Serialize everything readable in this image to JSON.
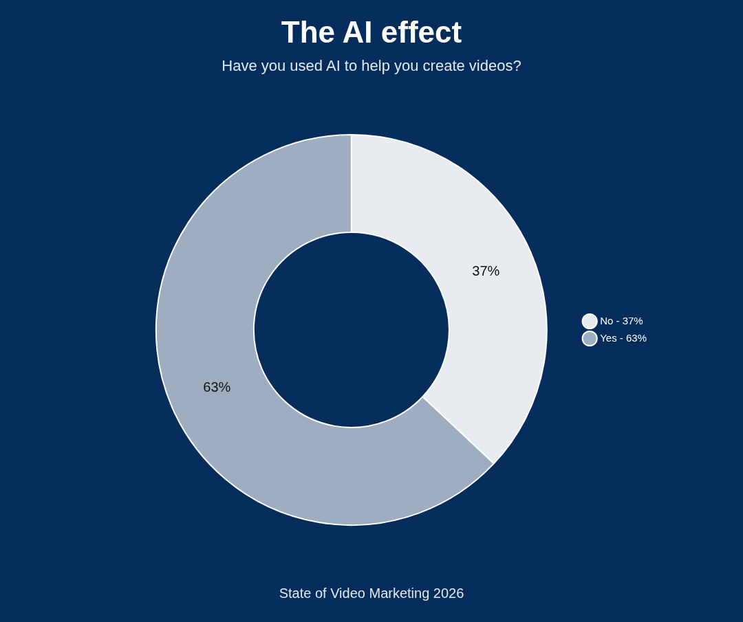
{
  "chart_data": {
    "type": "donut",
    "title": "The AI effect",
    "subtitle": "Have you used AI to help you create videos?",
    "categories": [
      "No - 37%",
      "Yes - 63%"
    ],
    "values": [
      37,
      63
    ],
    "colors": [
      "#e8ebf0",
      "#9eaec0"
    ],
    "value_labels": [
      "37%",
      "63%"
    ],
    "legend": "right",
    "annotations": [
      "State of Video Marketing 2026"
    ]
  }
}
